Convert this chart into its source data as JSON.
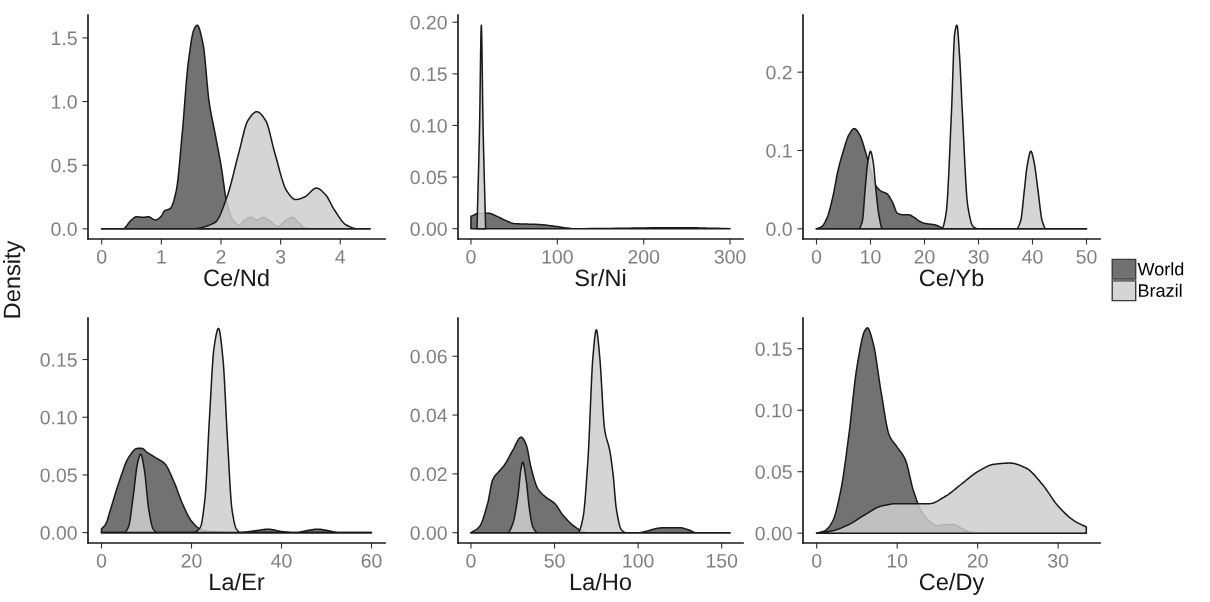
{
  "chart_data": [
    {
      "type": "area",
      "xlabel": "Ce/Nd",
      "ylabel": "Density",
      "xlim": [
        -0.23,
        4.75
      ],
      "xticks": [
        0,
        1,
        2,
        3,
        4
      ],
      "ylim": [
        -0.08,
        1.68
      ],
      "yticks": [
        {
          "value": 0,
          "label": "0.0"
        },
        {
          "value": 0.5,
          "label": "0.5"
        },
        {
          "value": 1.0,
          "label": "1.0"
        },
        {
          "value": 1.5,
          "label": "1.5"
        }
      ],
      "grid": false,
      "legend": "right",
      "series": [
        {
          "name": "World",
          "color": "#595959",
          "x": [
            0,
            0.35,
            0.5,
            0.58,
            0.7,
            0.78,
            0.9,
            1.0,
            1.05,
            1.15,
            1.25,
            1.35,
            1.45,
            1.55,
            1.6,
            1.7,
            1.8,
            1.9,
            2.0,
            2.1,
            2.2,
            2.3,
            2.4,
            2.5,
            2.6,
            2.7,
            2.8,
            2.95,
            3.1,
            3.2,
            3.3,
            3.4,
            3.5,
            4.5
          ],
          "values": [
            0,
            0,
            0.07,
            0.095,
            0.09,
            0.095,
            0.07,
            0.1,
            0.14,
            0.16,
            0.3,
            0.75,
            1.3,
            1.57,
            1.6,
            1.45,
            1.0,
            0.75,
            0.5,
            0.2,
            0.07,
            0.03,
            0.07,
            0.09,
            0.07,
            0.09,
            0.07,
            0.02,
            0.07,
            0.09,
            0.05,
            0.01,
            0,
            0
          ]
        },
        {
          "name": "Brazil",
          "color": "#cececf",
          "x": [
            0,
            1.5,
            1.9,
            2.1,
            2.3,
            2.45,
            2.6,
            2.75,
            2.9,
            3.1,
            3.25,
            3.4,
            3.6,
            3.75,
            3.9,
            4.1,
            4.3,
            4.5
          ],
          "values": [
            0,
            0,
            0.05,
            0.25,
            0.6,
            0.85,
            0.92,
            0.85,
            0.6,
            0.3,
            0.23,
            0.25,
            0.32,
            0.27,
            0.15,
            0.03,
            0,
            0
          ]
        }
      ]
    },
    {
      "type": "area",
      "xlabel": "Sr/Ni",
      "xlim": [
        -15,
        315
      ],
      "xticks": [
        0,
        100,
        200,
        300
      ],
      "ylim": [
        -0.01,
        0.207
      ],
      "yticks": [
        {
          "value": 0,
          "label": "0.00"
        },
        {
          "value": 0.05,
          "label": "0.05"
        },
        {
          "value": 0.1,
          "label": "0.10"
        },
        {
          "value": 0.15,
          "label": "0.15"
        },
        {
          "value": 0.2,
          "label": "0.20"
        }
      ],
      "grid": false,
      "series": [
        {
          "color": "#595959",
          "x": [
            0,
            10,
            20,
            30,
            40,
            50,
            80,
            100,
            120,
            240,
            300
          ],
          "values": [
            0.012,
            0.015,
            0.015,
            0.012,
            0.008,
            0.005,
            0.004,
            0.002,
            0,
            0.001,
            0
          ]
        },
        {
          "color": "#cececf",
          "x": [
            7,
            10,
            12,
            14,
            17
          ],
          "values": [
            0,
            0.1,
            0.197,
            0.1,
            0
          ]
        }
      ]
    },
    {
      "type": "area",
      "xlabel": "Ce/Yb",
      "xlim": [
        -2.5,
        52.5
      ],
      "xticks": [
        0,
        10,
        20,
        30,
        40,
        50
      ],
      "ylim": [
        -0.013,
        0.273
      ],
      "yticks": [
        {
          "value": 0,
          "label": "0.0"
        },
        {
          "value": 0.1,
          "label": "0.1"
        },
        {
          "value": 0.2,
          "label": "0.2"
        }
      ],
      "grid": false,
      "series": [
        {
          "color": "#595959",
          "x": [
            0,
            1,
            2,
            3,
            4,
            5,
            6,
            7,
            8,
            9,
            10,
            11,
            12,
            13,
            14,
            15,
            16,
            17,
            18,
            19,
            20,
            21,
            22,
            23,
            24,
            50
          ],
          "values": [
            0,
            0.003,
            0.015,
            0.04,
            0.075,
            0.1,
            0.12,
            0.128,
            0.12,
            0.1,
            0.075,
            0.055,
            0.048,
            0.045,
            0.035,
            0.02,
            0.018,
            0.018,
            0.015,
            0.01,
            0.007,
            0.006,
            0.005,
            0.002,
            0,
            0
          ]
        },
        {
          "color": "#cececf",
          "x": [
            0,
            7.8,
            8.5,
            9,
            9.5,
            10,
            10.5,
            11,
            11.5,
            12.2,
            23.2,
            24,
            25,
            25.6,
            26,
            26.5,
            27,
            28,
            29,
            30,
            37,
            37.8,
            38.5,
            39,
            39.7,
            40.3,
            41,
            41.8,
            42.5,
            50
          ],
          "values": [
            0,
            0,
            0.01,
            0.05,
            0.085,
            0.099,
            0.085,
            0.05,
            0.02,
            0,
            0,
            0.02,
            0.15,
            0.25,
            0.26,
            0.22,
            0.15,
            0.03,
            0.003,
            0,
            0,
            0.01,
            0.05,
            0.08,
            0.099,
            0.085,
            0.05,
            0.01,
            0,
            0
          ]
        }
      ]
    },
    {
      "type": "area",
      "xlabel": "La/Er",
      "xlim": [
        -3,
        63
      ],
      "xticks": [
        0,
        20,
        40,
        60
      ],
      "ylim": [
        -0.009,
        0.186
      ],
      "yticks": [
        {
          "value": 0,
          "label": "0.00"
        },
        {
          "value": 0.05,
          "label": "0.05"
        },
        {
          "value": 0.1,
          "label": "0.10"
        },
        {
          "value": 0.15,
          "label": "0.15"
        }
      ],
      "grid": false,
      "series": [
        {
          "color": "#595959",
          "x": [
            0,
            1,
            2,
            4,
            6,
            8,
            9,
            10,
            12,
            14,
            16,
            18,
            20,
            22,
            24,
            30,
            35,
            37,
            40,
            43,
            46,
            48,
            50,
            53,
            60
          ],
          "values": [
            0.003,
            0.008,
            0.02,
            0.045,
            0.065,
            0.073,
            0.073,
            0.07,
            0.065,
            0.06,
            0.045,
            0.025,
            0.01,
            0.003,
            0.001,
            0,
            0.002,
            0.003,
            0.001,
            0,
            0.002,
            0.003,
            0.002,
            0,
            0
          ]
        },
        {
          "color": "#cececf",
          "x": [
            0,
            5,
            6,
            7,
            8,
            8.7,
            9.5,
            10.5,
            11.5,
            12.5,
            20,
            21,
            22,
            23,
            24,
            25,
            26,
            27,
            28,
            29,
            30,
            31,
            60
          ],
          "values": [
            0,
            0,
            0.005,
            0.03,
            0.06,
            0.068,
            0.055,
            0.02,
            0.003,
            0,
            0,
            0.001,
            0.005,
            0.03,
            0.1,
            0.16,
            0.177,
            0.15,
            0.08,
            0.02,
            0.003,
            0,
            0
          ]
        }
      ]
    },
    {
      "type": "area",
      "xlabel": "La/Ho",
      "xlim": [
        -7.75,
        162.75
      ],
      "xticks": [
        0,
        50,
        100,
        150
      ],
      "ylim": [
        -0.0035,
        0.073
      ],
      "yticks": [
        {
          "value": 0,
          "label": "0.00"
        },
        {
          "value": 0.02,
          "label": "0.02"
        },
        {
          "value": 0.04,
          "label": "0.04"
        },
        {
          "value": 0.06,
          "label": "0.06"
        }
      ],
      "grid": false,
      "series": [
        {
          "color": "#595959",
          "x": [
            0,
            5,
            10,
            13,
            17,
            20,
            25,
            30,
            33,
            36,
            40,
            45,
            50,
            55,
            60,
            65,
            70,
            100,
            105,
            110,
            115,
            125,
            130,
            135,
            155
          ],
          "values": [
            0,
            0.002,
            0.01,
            0.018,
            0.021,
            0.023,
            0.028,
            0.0325,
            0.03,
            0.022,
            0.015,
            0.012,
            0.01,
            0.006,
            0.003,
            0.001,
            0,
            0,
            0.0005,
            0.0013,
            0.0017,
            0.0017,
            0.001,
            0,
            0
          ]
        },
        {
          "color": "#cececf",
          "x": [
            0,
            22,
            25,
            28,
            30,
            31,
            33,
            35,
            37,
            40,
            64,
            67,
            70,
            73,
            75,
            77,
            80,
            83,
            85,
            87,
            90,
            93,
            155
          ],
          "values": [
            0,
            0,
            0.003,
            0.012,
            0.022,
            0.024,
            0.018,
            0.008,
            0.002,
            0,
            0,
            0.005,
            0.025,
            0.06,
            0.069,
            0.06,
            0.035,
            0.028,
            0.02,
            0.008,
            0.001,
            0,
            0
          ]
        }
      ]
    },
    {
      "type": "area",
      "xlabel": "Ce/Dy",
      "xlim": [
        -1.7,
        35.2
      ],
      "xticks": [
        0,
        10,
        20,
        30
      ],
      "ylim": [
        -0.008,
        0.175
      ],
      "yticks": [
        {
          "value": 0,
          "label": "0.00"
        },
        {
          "value": 0.05,
          "label": "0.05"
        },
        {
          "value": 0.1,
          "label": "0.10"
        },
        {
          "value": 0.15,
          "label": "0.15"
        }
      ],
      "grid": false,
      "series": [
        {
          "color": "#595959",
          "x": [
            0,
            1,
            2,
            3,
            4,
            5,
            6,
            6.3,
            7,
            8,
            9,
            10,
            11,
            12,
            13,
            14,
            15,
            16,
            17,
            18,
            19,
            20,
            33.5
          ],
          "values": [
            0,
            0.002,
            0.01,
            0.035,
            0.08,
            0.135,
            0.165,
            0.167,
            0.155,
            0.115,
            0.08,
            0.07,
            0.06,
            0.035,
            0.018,
            0.01,
            0.006,
            0.007,
            0.007,
            0.004,
            0.001,
            0,
            0
          ]
        },
        {
          "color": "#cececf",
          "x": [
            0,
            2,
            4,
            6,
            8,
            10,
            12,
            14,
            16,
            18,
            20,
            22,
            24,
            26,
            28,
            30,
            32,
            33.5
          ],
          "values": [
            0,
            0.002,
            0.007,
            0.015,
            0.022,
            0.024,
            0.024,
            0.024,
            0.03,
            0.04,
            0.05,
            0.056,
            0.057,
            0.053,
            0.04,
            0.022,
            0.01,
            0.005
          ]
        }
      ]
    }
  ]
}
